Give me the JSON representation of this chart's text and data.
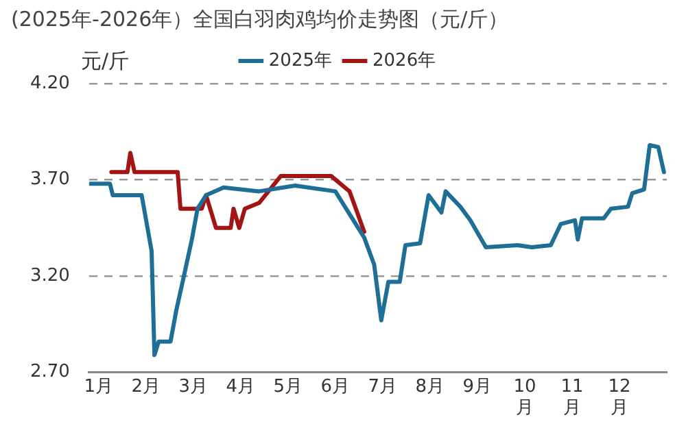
{
  "chart_data": {
    "type": "line",
    "title": "(2025年-2026年）全国白羽肉鸡均价走势图（元/斤）",
    "ylabel": "元/斤",
    "xlim": [
      0.8,
      13.0
    ],
    "xticks": [
      {
        "value": 1,
        "label": "1月"
      },
      {
        "value": 2,
        "label": "2月"
      },
      {
        "value": 3,
        "label": "3月"
      },
      {
        "value": 4,
        "label": "4月"
      },
      {
        "value": 5,
        "label": "5月"
      },
      {
        "value": 6,
        "label": "6月"
      },
      {
        "value": 7,
        "label": "7月"
      },
      {
        "value": 8,
        "label": "8月"
      },
      {
        "value": 9,
        "label": "9月"
      },
      {
        "value": 10,
        "label": "10\n月"
      },
      {
        "value": 11,
        "label": "11\n月"
      },
      {
        "value": 12,
        "label": "12\n月"
      }
    ],
    "ylim": [
      2.7,
      4.2
    ],
    "yticks": [
      {
        "value": 2.7,
        "label": "2.70"
      },
      {
        "value": 3.2,
        "label": "3.20"
      },
      {
        "value": 3.7,
        "label": "3.70"
      },
      {
        "value": 4.2,
        "label": "4.20"
      }
    ],
    "grid": "y",
    "legend": "top",
    "line_style": "solid",
    "series": [
      {
        "name": "2025年",
        "color": "#1f6e96",
        "x": [
          0.82,
          1.24,
          1.3,
          1.91,
          2.12,
          2.18,
          2.27,
          2.52,
          2.64,
          2.82,
          2.97,
          3.09,
          3.27,
          3.64,
          4.39,
          5.15,
          6.0,
          6.61,
          6.82,
          6.97,
          7.12,
          7.36,
          7.48,
          7.79,
          7.97,
          8.24,
          8.33,
          8.64,
          8.85,
          9.18,
          9.85,
          10.15,
          10.55,
          10.76,
          11.06,
          11.12,
          11.21,
          11.67,
          11.82,
          12.18,
          12.27,
          12.52,
          12.64,
          12.82,
          12.94
        ],
        "values": [
          3.68,
          3.68,
          3.62,
          3.62,
          3.33,
          2.79,
          2.86,
          2.86,
          3.02,
          3.22,
          3.39,
          3.55,
          3.62,
          3.66,
          3.64,
          3.67,
          3.64,
          3.4,
          3.26,
          2.97,
          3.17,
          3.17,
          3.36,
          3.37,
          3.62,
          3.53,
          3.64,
          3.56,
          3.49,
          3.35,
          3.36,
          3.35,
          3.36,
          3.47,
          3.49,
          3.39,
          3.5,
          3.5,
          3.55,
          3.56,
          3.63,
          3.65,
          3.88,
          3.87,
          3.74
        ]
      },
      {
        "name": "2026年",
        "color": "#a31515",
        "x": [
          1.27,
          1.61,
          1.67,
          1.76,
          2.67,
          2.73,
          3.18,
          3.27,
          3.48,
          3.79,
          3.85,
          3.97,
          4.09,
          4.39,
          4.85,
          5.91,
          6.3,
          6.61
        ],
        "values": [
          3.74,
          3.74,
          3.84,
          3.74,
          3.74,
          3.55,
          3.55,
          3.62,
          3.45,
          3.45,
          3.55,
          3.45,
          3.55,
          3.58,
          3.72,
          3.72,
          3.64,
          3.43
        ]
      }
    ]
  }
}
